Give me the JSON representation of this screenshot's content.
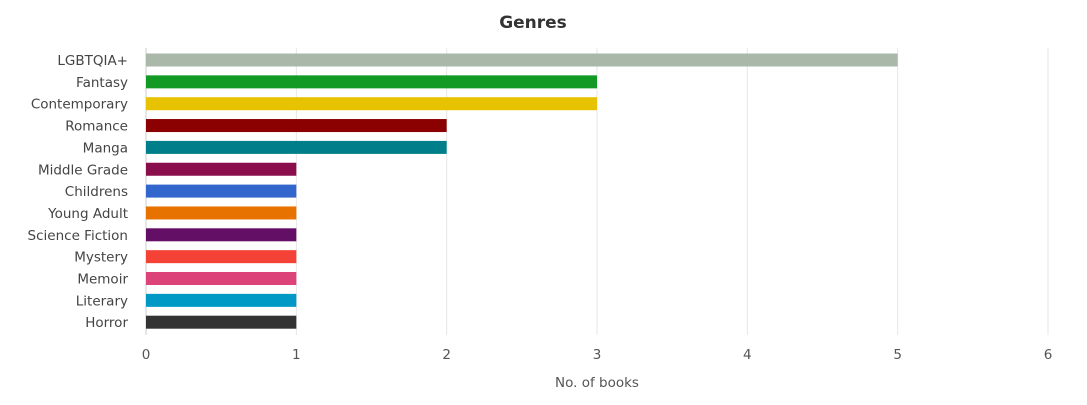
{
  "chart_data": {
    "type": "bar",
    "orientation": "horizontal",
    "title": "Genres",
    "xlabel": "No. of books",
    "ylabel": "",
    "xlim": [
      0,
      6
    ],
    "x_ticks": [
      "0",
      "1",
      "2",
      "3",
      "4",
      "5",
      "6"
    ],
    "grid": true,
    "categories": [
      "LGBTQIA+",
      "Fantasy",
      "Contemporary",
      "Romance",
      "Manga",
      "Middle Grade",
      "Childrens",
      "Young Adult",
      "Science Fiction",
      "Mystery",
      "Memoir",
      "Literary",
      "Horror"
    ],
    "values": [
      5,
      3,
      3,
      2,
      2,
      1,
      1,
      1,
      1,
      1,
      1,
      1,
      1
    ],
    "colors": [
      "#a9b8a8",
      "#129a24",
      "#e6c200",
      "#8b0000",
      "#007f8a",
      "#8a0e4c",
      "#3366cc",
      "#e87200",
      "#640f66",
      "#f44336",
      "#db4379",
      "#0099c6",
      "#333333"
    ]
  }
}
